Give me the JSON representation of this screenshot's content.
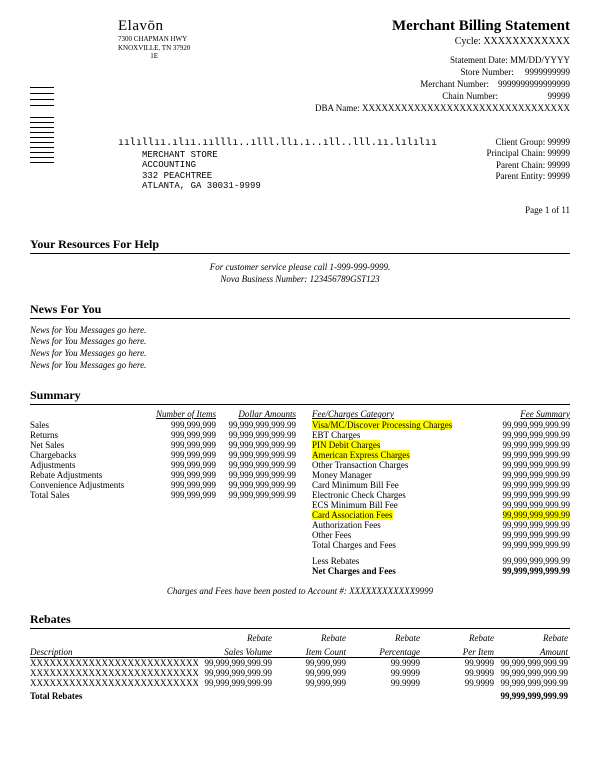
{
  "header": {
    "logo": "Elavōn",
    "addr1": "7300 CHAPMAN HWY",
    "addr2": "KNOXVILLE, TN 37920",
    "addr3": "1E",
    "title": "Merchant Billing Statement",
    "cycle": "Cycle: XXXXXXXXXXXX",
    "stmt_date": "Statement Date: MM/DD/YYYY",
    "store_lbl": "Store Number:",
    "store_val": "9999999999",
    "merch_lbl": "Merchant Number:",
    "merch_val": "9999999999999999",
    "chain_lbl": "Chain Number:",
    "chain_val": "99999",
    "dba_lbl": "DBA Name:",
    "dba_val": "XXXXXXXXXXXXXXXXXXXXXXXXXXXXXXXX"
  },
  "barcode": "ıılıllıı.ılıı.ıılllı..ılll.llı.ı..ıll..lll.ıı.lılılıı",
  "merchant_addr": {
    "l1": "MERCHANT STORE",
    "l2": "ACCOUNTING",
    "l3": "332 PEACHTREE",
    "l4": "ATLANTA, GA  30031-9999"
  },
  "client": {
    "l1": "Client Group: 99999",
    "l2": "Principal Chain: 99999",
    "l3": "Parent Chain: 99999",
    "l4": "Parent Entity: 99999"
  },
  "page": "Page 1 of 11",
  "sections": {
    "help": "Your Resources For Help",
    "news": "News For You",
    "summary": "Summary",
    "rebates": "Rebates"
  },
  "help": {
    "l1": "For customer service please call 1-999-999-9999.",
    "l2": "Nova Business Number: 123456789GST123"
  },
  "news_line": "News for You Messages go here.",
  "summary_left": {
    "h1": "Number of Items",
    "h2": "Dollar Amounts",
    "rows": [
      {
        "label": "Sales",
        "n": "999,999,999",
        "a": "99,999,999,999.99"
      },
      {
        "label": "Returns",
        "n": "999,999,999",
        "a": "99,999,999,999.99"
      },
      {
        "label": "Net Sales",
        "n": "999,999,999",
        "a": "99,999,999,999.99"
      },
      {
        "label": "Chargebacks",
        "n": "999,999,999",
        "a": "99,999,999,999.99"
      },
      {
        "label": "Adjustments",
        "n": "999,999,999",
        "a": "99,999,999,999.99"
      },
      {
        "label": "Rebate Adjustments",
        "n": "999,999,999",
        "a": "99,999,999,999.99"
      },
      {
        "label": "Convenience Adjustments",
        "n": "999,999,999",
        "a": "99,999,999,999.99"
      },
      {
        "label": "Total Sales",
        "n": "999,999,999",
        "a": "99,999,999,999.99"
      }
    ]
  },
  "summary_right": {
    "h1": "Fee/Charges Category",
    "h2": "Fee Summary",
    "rows": [
      {
        "label": "Visa/MC/Discover Processing Charges",
        "a": "99,999,999,999.99",
        "hl": true
      },
      {
        "label": "EBT Charges",
        "a": "99,999,999,999.99",
        "hl": false
      },
      {
        "label": "PIN Debit Charges",
        "a": "99,999,999,999.99",
        "hl": true
      },
      {
        "label": "American Express Charges",
        "a": "99,999,999,999.99",
        "hl": true
      },
      {
        "label": "Other Transaction Charges",
        "a": "99,999,999,999.99",
        "hl": false
      },
      {
        "label": "Money Manager",
        "a": "99,999,999,999.99",
        "hl": false
      },
      {
        "label": "Card Minimum Bill Fee",
        "a": "99,999,999,999.99",
        "hl": false
      },
      {
        "label": "Electronic Check Charges",
        "a": "99,999,999,999.99",
        "hl": false
      },
      {
        "label": "ECS Minimum Bill Fee",
        "a": "99,999,999,999.99",
        "hl": false
      },
      {
        "label": "Card Association Fees",
        "a": "99,999,999,999.99",
        "hl": true,
        "hlamt": true
      },
      {
        "label": "Authorization Fees",
        "a": "99,999,999,999.99",
        "hl": false
      },
      {
        "label": "Other Fees",
        "a": "99,999,999,999.99",
        "hl": false
      },
      {
        "label": "Total Charges and Fees",
        "a": "99,999,999,999.99",
        "hl": false
      }
    ],
    "less": {
      "label": "Less Rebates",
      "a": "99,999,999,999.99"
    },
    "net": {
      "label": "Net Charges and Fees",
      "a": "99,999,999,999.99"
    }
  },
  "posted": "Charges and Fees have been posted to Account #: XXXXXXXXXXXX9999",
  "rebates": {
    "headers_top": {
      "c2": "Rebate",
      "c3": "Rebate",
      "c4": "Rebate",
      "c5": "Rebate",
      "c6": "Rebate"
    },
    "headers": {
      "c1": "Description",
      "c2": "Sales Volume",
      "c3": "Item Count",
      "c4": "Percentage",
      "c5": "Per Item",
      "c6": "Amount"
    },
    "rows": [
      {
        "d": "XXXXXXXXXXXXXXXXXXXXXXXXXXXXXXXXXXX",
        "v2": "99,999,999,999.99",
        "v3": "99,999,999",
        "v4": "99.9999",
        "v5": "99.9999",
        "v6": "99,999,999,999.99"
      },
      {
        "d": "XXXXXXXXXXXXXXXXXXXXXXXXXXXXXXXXXXX",
        "v2": "99,999,999,999.99",
        "v3": "99,999,999",
        "v4": "99.9999",
        "v5": "99.9999",
        "v6": "99,999,999,999.99"
      },
      {
        "d": "XXXXXXXXXXXXXXXXXXXXXXXXXXXXXXXXXXX",
        "v2": "99,999,999,999.99",
        "v3": "99,999,999",
        "v4": "99.9999",
        "v5": "99.9999",
        "v6": "99,999,999,999.99"
      }
    ],
    "total_lbl": "Total Rebates",
    "total_amt": "99,999,999,999.99"
  }
}
